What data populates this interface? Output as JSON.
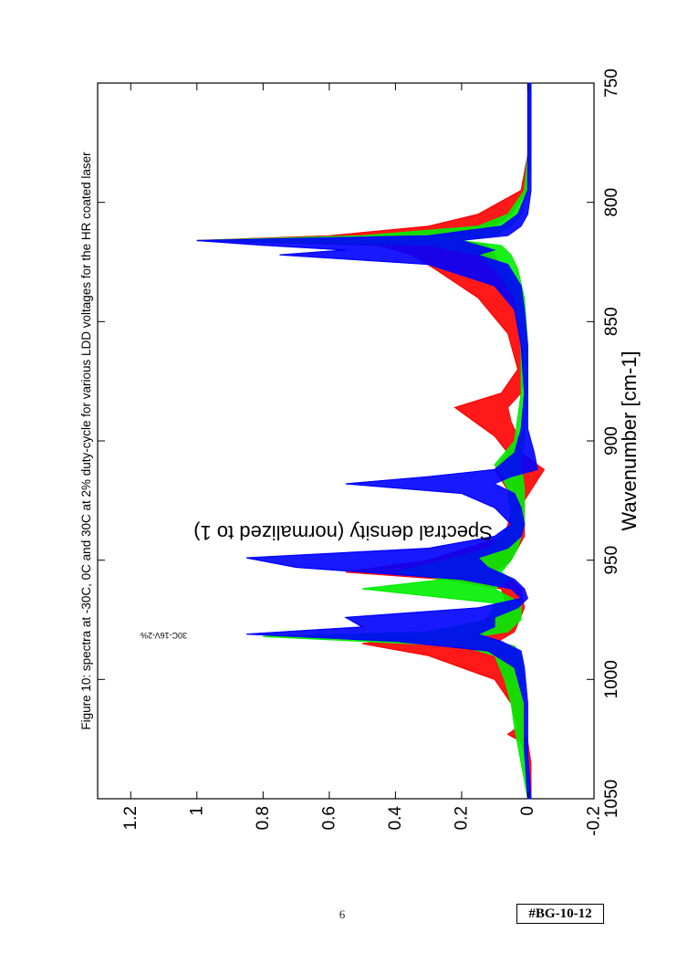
{
  "footer": {
    "page_number": "6",
    "doc_id": "#BG-10-12"
  },
  "chart_data": {
    "type": "line",
    "title": "Figure 10: spectra at -30C, 0C and 30C at 2% duty-cycle for various LDD voltages for the HR coated laser",
    "xlabel": "Wavenumber [cm-1]",
    "ylabel": "Spectral density (normalized to 1)",
    "xlim": [
      750,
      1050
    ],
    "ylim": [
      -0.2,
      1.3
    ],
    "x_ticks": [
      750,
      800,
      850,
      900,
      950,
      1000,
      1050
    ],
    "x_tick_labels": [
      "750",
      "800",
      "850",
      "900",
      "950",
      "1000",
      "1050"
    ],
    "y_ticks": [
      -0.2,
      0,
      0.2,
      0.4,
      0.6,
      0.8,
      1,
      1.2
    ],
    "y_tick_labels": [
      "-0.2",
      "0",
      "0.2",
      "0.4",
      "0.6",
      "0.8",
      "1",
      "1.2"
    ],
    "orientation": "rotated-90-clockwise",
    "grid": false,
    "legend_placement": "at-peak",
    "peak_annotation": "30C-16V-2%",
    "series": [
      {
        "color": "#ff0000",
        "x": [
          750,
          780,
          795,
          805,
          810,
          814,
          816,
          818,
          822,
          828,
          840,
          855,
          870,
          880,
          886,
          892,
          898,
          905,
          912,
          925,
          940,
          950,
          955,
          958,
          962,
          970,
          980,
          985,
          990,
          995,
          1000,
          1010,
          1020,
          1023,
          1026,
          1035,
          1050
        ],
        "y": [
          0,
          0,
          0.02,
          0.15,
          0.3,
          0.6,
          1.0,
          0.45,
          0.35,
          0.28,
          0.15,
          0.06,
          0.03,
          0.08,
          0.22,
          0.16,
          0.1,
          0.06,
          0.1,
          0.04,
          0.07,
          0.3,
          0.55,
          0.25,
          0.08,
          0.06,
          0.2,
          0.5,
          0.3,
          0.2,
          0.1,
          0.05,
          0.03,
          0.06,
          0.02,
          0,
          0
        ],
        "y_low": [
          -0.01,
          -0.01,
          0,
          0.05,
          0.1,
          0.15,
          0.2,
          0.12,
          0.1,
          0.08,
          0.04,
          0.02,
          0.01,
          0.02,
          0.06,
          0.05,
          0.03,
          0.02,
          -0.05,
          0.01,
          0.01,
          0.05,
          0.1,
          0.05,
          0.02,
          0.01,
          0.04,
          0.1,
          0.06,
          0.04,
          0.02,
          0.01,
          0.01,
          0.01,
          0,
          -0.01,
          -0.01
        ]
      },
      {
        "color": "#00ee00",
        "x": [
          750,
          780,
          795,
          805,
          810,
          814,
          816,
          818,
          822,
          828,
          840,
          860,
          880,
          900,
          910,
          920,
          935,
          945,
          950,
          955,
          958,
          962,
          968,
          975,
          980,
          982,
          986,
          990,
          1000,
          1010,
          1020,
          1035,
          1050
        ],
        "y": [
          0,
          0,
          0.01,
          0.06,
          0.15,
          0.5,
          1.0,
          0.3,
          0.15,
          0.1,
          0.04,
          0.02,
          0.02,
          0.04,
          0.1,
          0.06,
          0.05,
          0.12,
          0.25,
          0.4,
          0.25,
          0.5,
          0.1,
          0.12,
          0.3,
          0.8,
          0.2,
          0.1,
          0.07,
          0.05,
          0.04,
          0.02,
          0
        ],
        "y_low": [
          -0.01,
          -0.01,
          0,
          0.02,
          0.05,
          0.1,
          0.2,
          0.08,
          0.05,
          0.03,
          0.01,
          0,
          0,
          0.01,
          0.02,
          0.01,
          0.01,
          0.03,
          0.05,
          0.08,
          0.05,
          0.1,
          0.02,
          0.02,
          0.06,
          0.15,
          0.04,
          0.02,
          0.01,
          0.01,
          0.01,
          0,
          -0.01
        ]
      },
      {
        "color": "#0000ff",
        "x": [
          750,
          780,
          795,
          805,
          810,
          814,
          816,
          818,
          820,
          822,
          826,
          835,
          845,
          860,
          880,
          895,
          905,
          912,
          915,
          918,
          922,
          928,
          935,
          940,
          945,
          949,
          953,
          958,
          962,
          966,
          970,
          974,
          978,
          981,
          984,
          988,
          995,
          1010,
          1030,
          1050
        ],
        "y": [
          0,
          0,
          0,
          0.03,
          0.08,
          0.3,
          1.0,
          0.8,
          0.55,
          0.75,
          0.3,
          0.1,
          0.04,
          0.02,
          0.01,
          0.02,
          0.04,
          0.1,
          0.3,
          0.55,
          0.2,
          0.1,
          0.05,
          0.1,
          0.3,
          0.85,
          0.7,
          0.2,
          0.05,
          0.02,
          0.15,
          0.55,
          0.5,
          0.85,
          0.4,
          0.12,
          0.04,
          0.01,
          0.01,
          0
        ],
        "y_low": [
          -0.01,
          -0.01,
          -0.01,
          0,
          0.02,
          0.06,
          0.2,
          0.15,
          0.1,
          0.15,
          0.06,
          0.02,
          0.01,
          0,
          0,
          0,
          -0.02,
          -0.03,
          0.05,
          0.1,
          0.04,
          0.02,
          0.01,
          0.02,
          0.06,
          0.15,
          0.12,
          0.04,
          0.01,
          0,
          0.03,
          0.1,
          0.1,
          0.15,
          0.08,
          0.02,
          0.01,
          0,
          0,
          -0.01
        ]
      }
    ]
  }
}
